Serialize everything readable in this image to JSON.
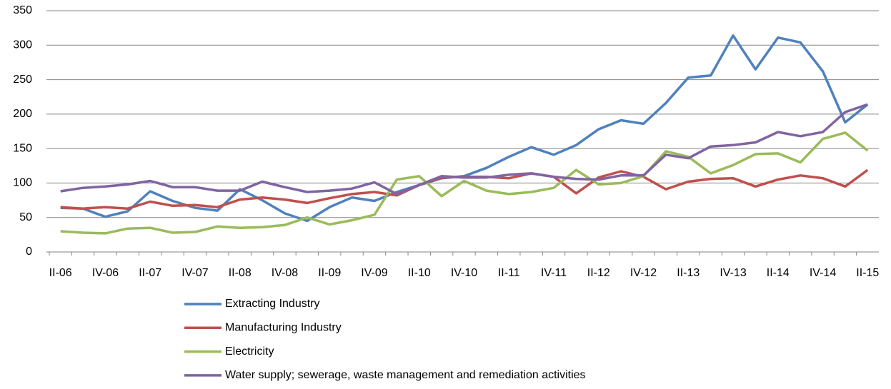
{
  "chart_data": {
    "type": "line",
    "categories": [
      "II-06",
      null,
      "IV-06",
      null,
      "II-07",
      null,
      "IV-07",
      null,
      "II-08",
      null,
      "IV-08",
      null,
      "II-09",
      null,
      "IV-09",
      null,
      "II-10",
      null,
      "IV-10",
      null,
      "II-11",
      null,
      "IV-11",
      null,
      "II-12",
      null,
      "IV-12",
      null,
      "II-13",
      null,
      "IV-13",
      null,
      "II-14",
      null,
      "IV-14",
      null,
      "II-15"
    ],
    "series": [
      {
        "name": "Extracting Industry",
        "color": "#4f81bd",
        "values": [
          64,
          63,
          51,
          59,
          88,
          74,
          64,
          60,
          91,
          75,
          56,
          45,
          65,
          79,
          74,
          87,
          97,
          107,
          110,
          122,
          138,
          152,
          141,
          155,
          178,
          191,
          186,
          216,
          253,
          256,
          314,
          265,
          311,
          304,
          262,
          188,
          214
        ]
      },
      {
        "name": "Manufacturing Industry",
        "color": "#c0504d",
        "values": [
          65,
          63,
          65,
          63,
          73,
          67,
          68,
          65,
          76,
          79,
          76,
          71,
          78,
          84,
          87,
          82,
          97,
          108,
          109,
          109,
          107,
          114,
          109,
          85,
          108,
          117,
          109,
          91,
          102,
          106,
          107,
          95,
          105,
          111,
          107,
          95,
          119
        ]
      },
      {
        "name": "Electricity",
        "color": "#9bbb59",
        "values": [
          30,
          28,
          27,
          34,
          35,
          28,
          29,
          37,
          35,
          36,
          39,
          50,
          40,
          46,
          54,
          105,
          110,
          81,
          103,
          89,
          84,
          87,
          93,
          119,
          98,
          100,
          110,
          146,
          138,
          114,
          126,
          142,
          143,
          130,
          164,
          173,
          147
        ]
      },
      {
        "name": "Water supply; sewerage, waste management and remediation activities",
        "color": "#8064a2",
        "values": [
          88,
          93,
          95,
          98,
          103,
          94,
          94,
          89,
          89,
          102,
          94,
          87,
          89,
          92,
          101,
          84,
          97,
          110,
          108,
          108,
          112,
          114,
          109,
          106,
          105,
          111,
          111,
          141,
          136,
          153,
          155,
          159,
          174,
          168,
          174,
          203,
          214
        ]
      }
    ],
    "ylim": [
      0,
      350
    ],
    "yticks": [
      0,
      50,
      100,
      150,
      200,
      250,
      300,
      350
    ],
    "grid": true,
    "legend": "bottom"
  }
}
